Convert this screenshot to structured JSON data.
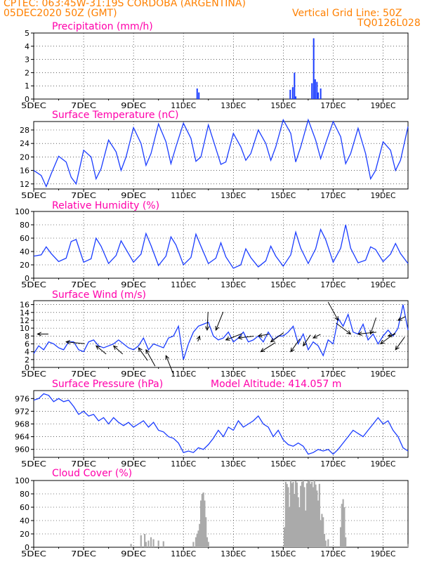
{
  "header": {
    "line1": "CPTEC:   063:45W-31:19S   CORDOBA (ARGENTINA)",
    "line2": "05DEC2020 50Z (GMT)",
    "grid": "Vertical Grid Line: 50Z",
    "code": "TQ0126L028"
  },
  "colors": {
    "header": "#ff8000",
    "title": "#ff00aa",
    "series": "#1a3cff",
    "cloud": "#aaaaaa",
    "wind": "#000000"
  },
  "x_axis": {
    "start_day": 5,
    "end_day": 20,
    "tick_days": [
      5,
      7,
      9,
      11,
      13,
      15,
      17,
      19
    ],
    "tick_labels": [
      "5DEC",
      "7DEC",
      "9DEC",
      "11DEC",
      "13DEC",
      "15DEC",
      "17DEC",
      "19DEC"
    ]
  },
  "chart_data": [
    {
      "id": "precip",
      "type": "bar",
      "title": "Precipitation (mm/h)",
      "ylim": [
        0,
        5
      ],
      "yticks": [
        0,
        1,
        2,
        3,
        4,
        5
      ],
      "x": [
        11.55,
        11.62,
        15.28,
        15.38,
        15.45,
        15.5,
        16.15,
        16.22,
        16.28,
        16.35,
        16.4,
        16.5
      ],
      "values": [
        0.8,
        0.5,
        0.7,
        0.9,
        2.0,
        0.2,
        1.2,
        4.6,
        1.5,
        1.3,
        0.5,
        0.8
      ]
    },
    {
      "id": "temp",
      "type": "line",
      "title": "Surface Temperature (nC)",
      "ylim": [
        10.5,
        30.5
      ],
      "yticks": [
        12,
        16,
        20,
        24,
        28
      ],
      "x": [
        5.0,
        5.3,
        5.5,
        5.7,
        6.0,
        6.3,
        6.5,
        6.7,
        7.0,
        7.3,
        7.5,
        7.7,
        8.0,
        8.3,
        8.5,
        8.7,
        9.0,
        9.3,
        9.5,
        9.7,
        10.0,
        10.3,
        10.5,
        10.7,
        11.0,
        11.3,
        11.5,
        11.7,
        12.0,
        12.3,
        12.5,
        12.7,
        13.0,
        13.3,
        13.5,
        13.7,
        14.0,
        14.3,
        14.5,
        14.7,
        15.0,
        15.3,
        15.5,
        15.7,
        16.0,
        16.3,
        16.5,
        16.7,
        17.0,
        17.3,
        17.5,
        17.7,
        18.0,
        18.3,
        18.5,
        18.7,
        19.0,
        19.3,
        19.5,
        19.7,
        20.0
      ],
      "values": [
        16,
        14.5,
        11.2,
        15,
        20.2,
        18.5,
        14,
        12,
        22,
        20,
        13.5,
        16.5,
        25,
        21.5,
        16,
        20,
        28.7,
        24,
        17.5,
        21,
        29.8,
        24.5,
        18,
        23,
        30,
        25.5,
        18.7,
        20,
        29.5,
        22.5,
        17.8,
        18.5,
        27,
        23,
        19,
        21,
        28,
        24,
        19,
        23,
        31,
        27,
        18.5,
        23,
        31,
        25,
        19.5,
        24,
        30.5,
        26,
        18,
        21,
        28.5,
        21,
        13.5,
        16,
        24.5,
        22,
        16,
        19,
        29
      ]
    },
    {
      "id": "rh",
      "type": "line",
      "title": "Relative Humidity (%)",
      "ylim": [
        0,
        100
      ],
      "yticks": [
        0,
        20,
        40,
        60,
        80,
        100
      ],
      "x": [
        5.0,
        5.3,
        5.5,
        5.7,
        6.0,
        6.3,
        6.5,
        6.7,
        7.0,
        7.3,
        7.5,
        7.7,
        8.0,
        8.3,
        8.5,
        8.7,
        9.0,
        9.3,
        9.5,
        9.7,
        10.0,
        10.3,
        10.5,
        10.7,
        11.0,
        11.3,
        11.5,
        11.7,
        12.0,
        12.3,
        12.5,
        12.7,
        13.0,
        13.3,
        13.5,
        13.7,
        14.0,
        14.3,
        14.5,
        14.7,
        15.0,
        15.3,
        15.5,
        15.7,
        16.0,
        16.3,
        16.5,
        16.7,
        17.0,
        17.3,
        17.5,
        17.7,
        18.0,
        18.3,
        18.5,
        18.7,
        19.0,
        19.3,
        19.5,
        19.7,
        20.0
      ],
      "values": [
        33,
        35,
        47,
        37,
        25,
        30,
        55,
        58,
        24,
        29,
        60,
        48,
        22,
        34,
        56,
        43,
        24,
        36,
        67,
        49,
        19,
        33,
        62,
        50,
        20,
        31,
        66,
        48,
        22,
        30,
        53,
        32,
        15,
        20,
        44,
        31,
        17,
        26,
        48,
        33,
        18,
        35,
        69,
        45,
        22,
        44,
        73,
        58,
        24,
        45,
        80,
        45,
        23,
        27,
        47,
        43,
        25,
        36,
        52,
        37,
        22
      ]
    },
    {
      "id": "wind",
      "type": "line",
      "title": "Surface Wind (m/s)",
      "ylim": [
        0,
        17
      ],
      "yticks": [
        0,
        2,
        4,
        6,
        8,
        10,
        12,
        14,
        16
      ],
      "x": [
        5.0,
        5.2,
        5.4,
        5.6,
        5.8,
        6.0,
        6.2,
        6.4,
        6.6,
        6.8,
        7.0,
        7.2,
        7.4,
        7.6,
        7.8,
        8.0,
        8.2,
        8.4,
        8.6,
        8.8,
        9.0,
        9.2,
        9.4,
        9.6,
        9.8,
        10.0,
        10.2,
        10.4,
        10.6,
        10.8,
        11.0,
        11.2,
        11.4,
        11.6,
        11.8,
        12.0,
        12.2,
        12.4,
        12.6,
        12.8,
        13.0,
        13.2,
        13.4,
        13.6,
        13.8,
        14.0,
        14.2,
        14.4,
        14.6,
        14.8,
        15.0,
        15.2,
        15.4,
        15.6,
        15.8,
        16.0,
        16.2,
        16.4,
        16.6,
        16.8,
        17.0,
        17.2,
        17.4,
        17.6,
        17.8,
        18.0,
        18.2,
        18.4,
        18.6,
        18.8,
        19.0,
        19.2,
        19.4,
        19.6,
        19.8,
        20.0
      ],
      "values": [
        3.5,
        5.5,
        4.5,
        6.5,
        6,
        5,
        4.5,
        6.5,
        6.5,
        4.5,
        4,
        6.5,
        7,
        5.5,
        5,
        5.5,
        6,
        7,
        6,
        5,
        4.5,
        5.5,
        7.5,
        4.5,
        6,
        5.5,
        5,
        7.5,
        8,
        10.5,
        2,
        6,
        9,
        10.5,
        11,
        11.5,
        8,
        7,
        7.5,
        9,
        6.5,
        7.5,
        9,
        6.5,
        7,
        8,
        6.5,
        9,
        7,
        8,
        8,
        9,
        10.5,
        6,
        8.5,
        4.5,
        6.5,
        5.5,
        3,
        7,
        6,
        12.5,
        10.5,
        13.5,
        9,
        8.5,
        11,
        7,
        8.5,
        6,
        8,
        9.5,
        8,
        10,
        16,
        9.5
      ],
      "arrows": [
        {
          "x": 5.15,
          "s": 8.5,
          "u": 0.6,
          "v": 0.0
        },
        {
          "x": 6.3,
          "s": 6.5,
          "u": 1.0,
          "v": -0.1
        },
        {
          "x": 7.5,
          "s": 5.5,
          "u": 0.55,
          "v": -0.45
        },
        {
          "x": 8.2,
          "s": 5.5,
          "u": 0.5,
          "v": -0.45
        },
        {
          "x": 9.2,
          "s": 5.0,
          "u": 0.5,
          "v": -0.7
        },
        {
          "x": 9.5,
          "s": 4.5,
          "u": 0.5,
          "v": -0.9
        },
        {
          "x": 10.3,
          "s": 3.0,
          "u": 0.4,
          "v": -1.0
        },
        {
          "x": 11.65,
          "s": 8.0,
          "u": -0.1,
          "v": -0.3
        },
        {
          "x": 11.95,
          "s": 9.5,
          "u": 0.05,
          "v": 1.0
        },
        {
          "x": 12.3,
          "s": 9.5,
          "u": 0.4,
          "v": 1.0
        },
        {
          "x": 12.7,
          "s": 7.0,
          "u": 0.9,
          "v": 0.35
        },
        {
          "x": 13.2,
          "s": 7.5,
          "u": 0.85,
          "v": 0.1
        },
        {
          "x": 14.0,
          "s": 8.0,
          "u": 0.6,
          "v": 0.1
        },
        {
          "x": 14.1,
          "s": 4.0,
          "u": 0.8,
          "v": 0.5
        },
        {
          "x": 14.5,
          "s": 6.5,
          "u": 0.7,
          "v": 0.5
        },
        {
          "x": 15.3,
          "s": 4.0,
          "u": 0.5,
          "v": 0.7
        },
        {
          "x": 15.8,
          "s": 5.5,
          "u": 0.4,
          "v": 0.6
        },
        {
          "x": 16.2,
          "s": 7.5,
          "u": 0.4,
          "v": 0.2
        },
        {
          "x": 17.2,
          "s": 12.0,
          "u": -0.55,
          "v": 1.0
        },
        {
          "x": 17.7,
          "s": 8.5,
          "u": -0.8,
          "v": 0.6
        },
        {
          "x": 18.0,
          "s": 8.5,
          "u": 1.0,
          "v": 0.1
        },
        {
          "x": 18.5,
          "s": 8.5,
          "u": 0.3,
          "v": 0.9
        },
        {
          "x": 18.9,
          "s": 6.0,
          "u": 0.8,
          "v": 0.6
        },
        {
          "x": 19.2,
          "s": 8.0,
          "u": 0.4,
          "v": 0.1
        },
        {
          "x": 19.5,
          "s": 4.5,
          "u": 0.5,
          "v": 0.7
        },
        {
          "x": 19.6,
          "s": 12.0,
          "u": 0.4,
          "v": 0.2
        }
      ]
    },
    {
      "id": "pres",
      "type": "line",
      "title": "Surface Pressure (hPa)",
      "note": "Model Altitude: 414.057 m",
      "ylim": [
        957.5,
        978.5
      ],
      "yticks": [
        960,
        964,
        968,
        972,
        976
      ],
      "x": [
        5.0,
        5.2,
        5.4,
        5.6,
        5.8,
        6.0,
        6.2,
        6.4,
        6.6,
        6.8,
        7.0,
        7.2,
        7.4,
        7.6,
        7.8,
        8.0,
        8.2,
        8.4,
        8.6,
        8.8,
        9.0,
        9.2,
        9.4,
        9.6,
        9.8,
        10.0,
        10.2,
        10.4,
        10.6,
        10.8,
        11.0,
        11.2,
        11.4,
        11.6,
        11.8,
        12.0,
        12.2,
        12.4,
        12.6,
        12.8,
        13.0,
        13.2,
        13.4,
        13.6,
        13.8,
        14.0,
        14.2,
        14.4,
        14.6,
        14.8,
        15.0,
        15.2,
        15.4,
        15.6,
        15.8,
        16.0,
        16.2,
        16.4,
        16.6,
        16.8,
        17.0,
        17.2,
        17.4,
        17.6,
        17.8,
        18.0,
        18.2,
        18.4,
        18.6,
        18.8,
        19.0,
        19.2,
        19.4,
        19.6,
        19.8,
        20.0
      ],
      "values": [
        975.5,
        976,
        977.5,
        977,
        975,
        976,
        975,
        975.5,
        973.5,
        971,
        972,
        970.5,
        971,
        969,
        970,
        968,
        970,
        968.5,
        967.5,
        968.5,
        967,
        968,
        969,
        967,
        968.5,
        966,
        965.5,
        964,
        963.5,
        962,
        959,
        959.5,
        959,
        960.5,
        960,
        961.5,
        963.5,
        966,
        964,
        967,
        966,
        969,
        967,
        968,
        969,
        970.5,
        968,
        967,
        964,
        966,
        963,
        961.5,
        961,
        962,
        961,
        958.5,
        959,
        960,
        959.5,
        960,
        958.5,
        960,
        962,
        964,
        966,
        965,
        964,
        966,
        968,
        970,
        968,
        969,
        966,
        964,
        960.5,
        959.5
      ]
    },
    {
      "id": "cloud",
      "type": "bar",
      "title": "Cloud Cover (%)",
      "ylim": [
        0,
        100
      ],
      "yticks": [
        0,
        20,
        40,
        60,
        80,
        100
      ],
      "x": [
        8.9,
        9.3,
        9.45,
        9.5,
        9.6,
        9.7,
        9.8,
        10.0,
        10.2,
        11.4,
        11.5,
        11.55,
        11.6,
        11.65,
        11.7,
        11.75,
        11.8,
        11.85,
        11.9,
        11.95,
        12.0,
        15.05,
        15.1,
        15.15,
        15.2,
        15.25,
        15.3,
        15.35,
        15.4,
        15.45,
        15.5,
        15.55,
        15.6,
        15.65,
        15.7,
        15.75,
        15.8,
        15.85,
        15.9,
        15.95,
        16.0,
        16.05,
        16.1,
        16.15,
        16.2,
        16.25,
        16.3,
        16.35,
        16.4,
        16.45,
        16.5,
        16.55,
        16.6,
        16.65,
        16.7,
        16.8,
        17.3,
        17.35,
        17.4,
        17.45,
        17.5,
        20.0
      ],
      "values": [
        5,
        18,
        20,
        8,
        10,
        15,
        12,
        10,
        9,
        8,
        15,
        20,
        25,
        35,
        70,
        80,
        82,
        70,
        45,
        15,
        8,
        30,
        98,
        95,
        90,
        60,
        100,
        96,
        98,
        80,
        99,
        97,
        75,
        60,
        92,
        98,
        100,
        90,
        55,
        96,
        99,
        100,
        95,
        98,
        90,
        100,
        94,
        85,
        70,
        95,
        40,
        50,
        45,
        20,
        10,
        12,
        30,
        65,
        72,
        60,
        15,
        5
      ]
    }
  ]
}
